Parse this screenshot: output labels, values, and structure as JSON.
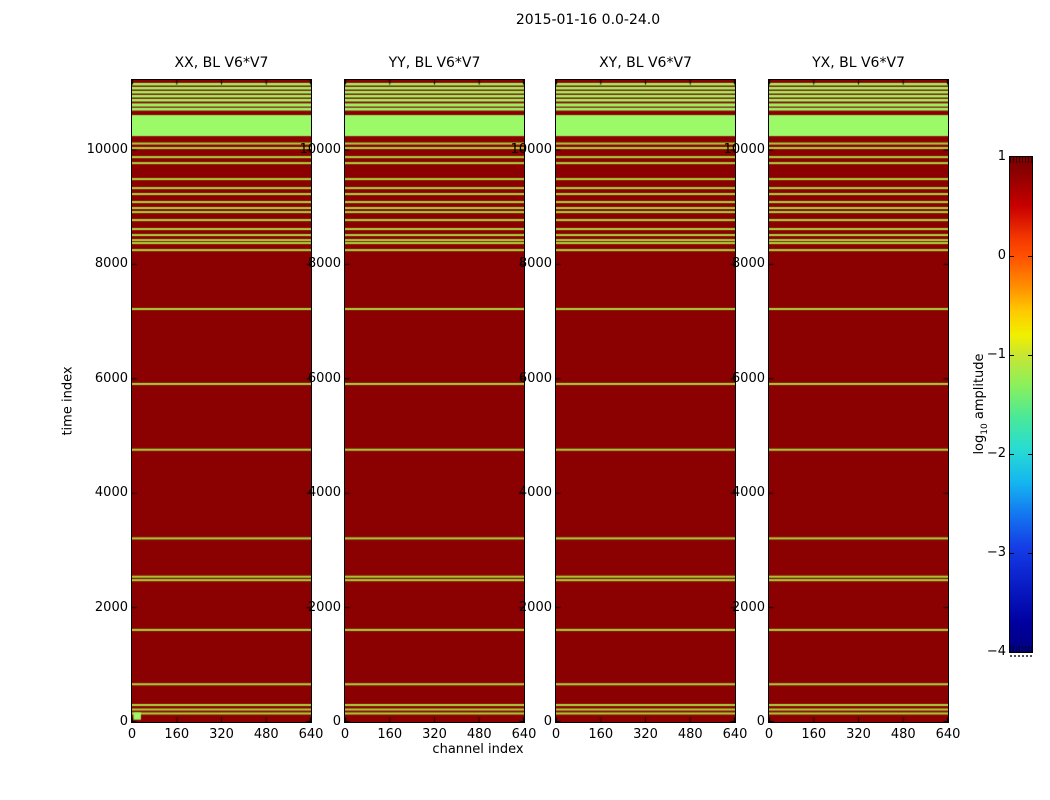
{
  "figure_title": "2015-01-16 0.0-24.0",
  "chart_data": {
    "type": "heatmap",
    "panel_titles": [
      "XX, BL V6*V7",
      "YY, BL V6*V7",
      "XY, BL V6*V7",
      "YX, BL V6*V7"
    ],
    "xlabel": "channel index",
    "ylabel": "time index",
    "xlim": [
      0,
      640
    ],
    "ylim": [
      0,
      11224
    ],
    "xticks": [
      0,
      160,
      320,
      480,
      640
    ],
    "xtick_labels": [
      "0",
      "160",
      "320",
      "480",
      "640"
    ],
    "yticks": [
      0,
      2000,
      4000,
      6000,
      8000,
      10000
    ],
    "ytick_labels": [
      "0",
      "2000",
      "4000",
      "6000",
      "8000",
      "10000"
    ],
    "colorbar": {
      "label_prefix": "log",
      "label_sub": "10",
      "label_suffix": " amplitude",
      "tick_values": [
        1,
        0,
        -1,
        -2,
        -3,
        -4
      ],
      "tick_labels": [
        "1",
        "0",
        "−1",
        "−2",
        "−3",
        "−4"
      ],
      "vmin": -4,
      "vmax": 1,
      "cmap": "jet",
      "jet_stops": [
        [
          0,
          "#7A0000"
        ],
        [
          3,
          "#8B0000"
        ],
        [
          10,
          "#C80000"
        ],
        [
          17,
          "#F83C00"
        ],
        [
          20,
          "#FF5000"
        ],
        [
          26,
          "#FF8C00"
        ],
        [
          31,
          "#FFC800"
        ],
        [
          36,
          "#F0F000"
        ],
        [
          40,
          "#C8E632"
        ],
        [
          46,
          "#8CF05A"
        ],
        [
          53,
          "#46E89C"
        ],
        [
          59,
          "#28DCD2"
        ],
        [
          66,
          "#14B4F0"
        ],
        [
          72,
          "#1478F0"
        ],
        [
          79,
          "#143CE6"
        ],
        [
          86,
          "#0A1EC8"
        ],
        [
          94,
          "#0000A0"
        ],
        [
          100,
          "#000080"
        ]
      ]
    },
    "colors": {
      "data_red": "#8B0000",
      "flag_green": "#9CF967",
      "flag_line_green": "#AADC3F",
      "axis_black": "#000000"
    },
    "flag_bands": [
      [
        10243,
        10611
      ],
      [
        10690,
        10738
      ],
      [
        10760,
        10815
      ],
      [
        10848,
        10893
      ],
      [
        10918,
        10963
      ],
      [
        10988,
        11033
      ],
      [
        11058,
        11103
      ],
      [
        11128,
        11173
      ]
    ],
    "flag_lines": [
      10113,
      10034,
      9876,
      9771,
      9492,
      9334,
      9230,
      9090,
      8985,
      8915,
      8775,
      8618,
      8513,
      8425,
      8373,
      8250,
      7220,
      5910,
      4760,
      3210,
      2540,
      2480,
      1610,
      660,
      297,
      218,
      149
    ],
    "xx_corner_patch": {
      "channels": [
        5,
        32
      ],
      "times": [
        40,
        170
      ]
    }
  }
}
